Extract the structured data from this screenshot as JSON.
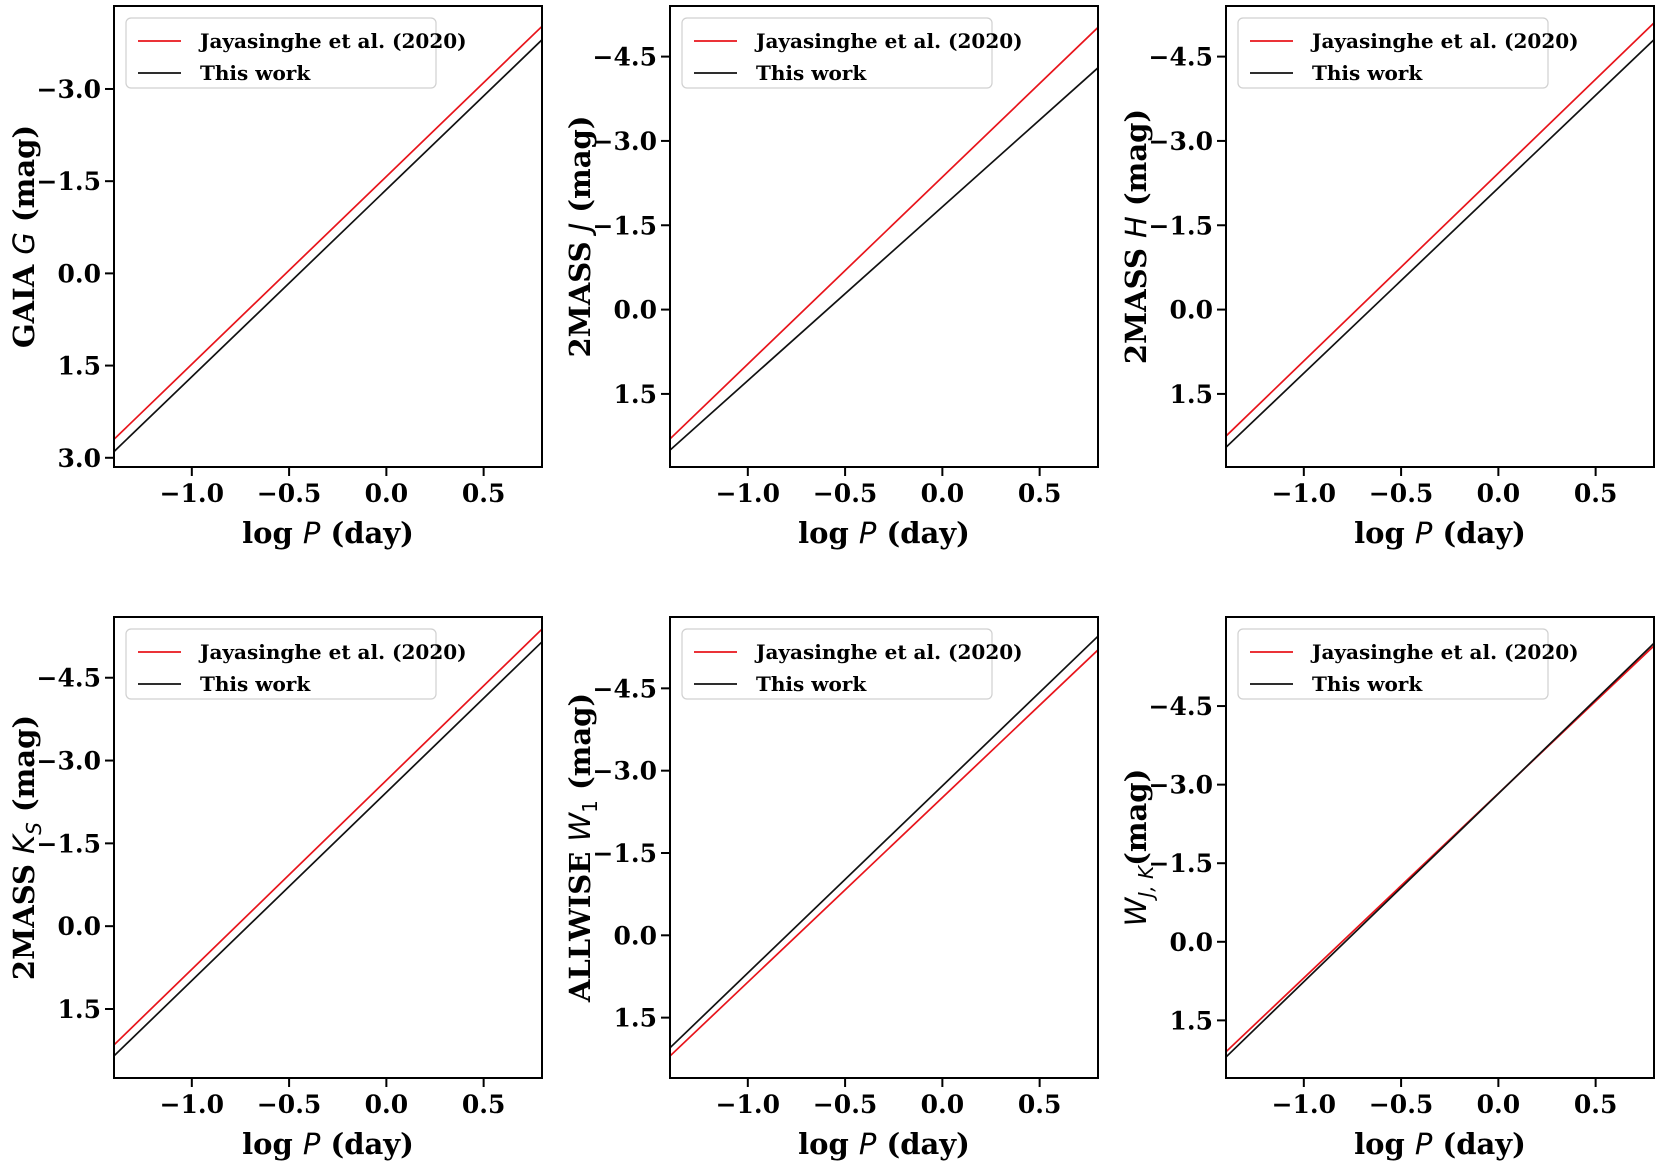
{
  "colors": {
    "jayasinghe": "#e8141b",
    "this_work": "#111111",
    "axes": "#000000"
  },
  "chart_data": [
    {
      "type": "line",
      "ylabel": "GAIA G (mag)",
      "ylabel_parts": [
        {
          "t": "GAIA "
        },
        {
          "t": "G",
          "i": true
        },
        {
          "t": " (mag)"
        }
      ],
      "xlabel": "log P (day)",
      "xlabel_parts": [
        {
          "t": "log "
        },
        {
          "t": "P",
          "i": true
        },
        {
          "t": " (day)"
        }
      ],
      "xlim": [
        -1.4,
        0.8
      ],
      "ylim": [
        3.15,
        -4.35
      ],
      "xticks": [
        -1.0,
        -0.5,
        0.0,
        0.5
      ],
      "xtick_labels": [
        "−1.0",
        "−0.5",
        "0.0",
        "0.5"
      ],
      "yticks": [
        -3.0,
        -1.5,
        0.0,
        1.5,
        3.0
      ],
      "ytick_labels": [
        "−3.0",
        "−1.5",
        "0.0",
        "1.5",
        "3.0"
      ],
      "legend": {
        "position": "upper-left",
        "entries": [
          "Jayasinghe et al. (2020)",
          "This work"
        ]
      },
      "series": [
        {
          "name": "Jayasinghe et al. (2020)",
          "color": "red",
          "x": [
            -1.4,
            0.8
          ],
          "values": [
            2.7,
            -4.02
          ]
        },
        {
          "name": "This work",
          "color": "black",
          "x": [
            -1.4,
            0.8
          ],
          "values": [
            2.9,
            -3.8
          ]
        }
      ]
    },
    {
      "type": "line",
      "ylabel": "2MASS J (mag)",
      "ylabel_parts": [
        {
          "t": "2MASS "
        },
        {
          "t": "J",
          "i": true
        },
        {
          "t": " (mag)"
        }
      ],
      "xlabel": "log P (day)",
      "xlabel_parts": [
        {
          "t": "log "
        },
        {
          "t": "P",
          "i": true
        },
        {
          "t": " (day)"
        }
      ],
      "xlim": [
        -1.4,
        0.8
      ],
      "ylim": [
        2.8,
        -5.4
      ],
      "xticks": [
        -1.0,
        -0.5,
        0.0,
        0.5
      ],
      "xtick_labels": [
        "−1.0",
        "−0.5",
        "0.0",
        "0.5"
      ],
      "yticks": [
        -4.5,
        -3.0,
        -1.5,
        0.0,
        1.5
      ],
      "ytick_labels": [
        "−4.5",
        "−3.0",
        "−1.5",
        "0.0",
        "1.5"
      ],
      "legend": {
        "position": "upper-left",
        "entries": [
          "Jayasinghe et al. (2020)",
          "This work"
        ]
      },
      "series": [
        {
          "name": "Jayasinghe et al. (2020)",
          "color": "red",
          "x": [
            -1.4,
            0.8
          ],
          "values": [
            2.3,
            -5.02
          ]
        },
        {
          "name": "This work",
          "color": "black",
          "x": [
            -1.4,
            0.8
          ],
          "values": [
            2.5,
            -4.3
          ]
        }
      ]
    },
    {
      "type": "line",
      "ylabel": "2MASS H (mag)",
      "ylabel_parts": [
        {
          "t": "2MASS "
        },
        {
          "t": "H",
          "i": true
        },
        {
          "t": " (mag)"
        }
      ],
      "xlabel": "log P (day)",
      "xlabel_parts": [
        {
          "t": "log "
        },
        {
          "t": "P",
          "i": true
        },
        {
          "t": " (day)"
        }
      ],
      "xlim": [
        -1.4,
        0.8
      ],
      "ylim": [
        2.8,
        -5.4
      ],
      "xticks": [
        -1.0,
        -0.5,
        0.0,
        0.5
      ],
      "xtick_labels": [
        "−1.0",
        "−0.5",
        "0.0",
        "0.5"
      ],
      "yticks": [
        -4.5,
        -3.0,
        -1.5,
        0.0,
        1.5
      ],
      "ytick_labels": [
        "−4.5",
        "−3.0",
        "−1.5",
        "0.0",
        "1.5"
      ],
      "legend": {
        "position": "upper-left",
        "entries": [
          "Jayasinghe et al. (2020)",
          "This work"
        ]
      },
      "series": [
        {
          "name": "Jayasinghe et al. (2020)",
          "color": "red",
          "x": [
            -1.4,
            0.8
          ],
          "values": [
            2.25,
            -5.1
          ]
        },
        {
          "name": "This work",
          "color": "black",
          "x": [
            -1.4,
            0.8
          ],
          "values": [
            2.45,
            -4.8
          ]
        }
      ]
    },
    {
      "type": "line",
      "ylabel": "2MASS Ks (mag)",
      "ylabel_parts": [
        {
          "t": "2MASS "
        },
        {
          "t": "K",
          "i": true
        },
        {
          "t": "S",
          "i": true,
          "sub": true
        },
        {
          "t": " (mag)"
        }
      ],
      "xlabel": "log P (day)",
      "xlabel_parts": [
        {
          "t": "log "
        },
        {
          "t": "P",
          "i": true
        },
        {
          "t": " (day)"
        }
      ],
      "xlim": [
        -1.4,
        0.8
      ],
      "ylim": [
        2.75,
        -5.6
      ],
      "xticks": [
        -1.0,
        -0.5,
        0.0,
        0.5
      ],
      "xtick_labels": [
        "−1.0",
        "−0.5",
        "0.0",
        "0.5"
      ],
      "yticks": [
        -4.5,
        -3.0,
        -1.5,
        0.0,
        1.5
      ],
      "ytick_labels": [
        "−4.5",
        "−3.0",
        "−1.5",
        "0.0",
        "1.5"
      ],
      "legend": {
        "position": "upper-left",
        "entries": [
          "Jayasinghe et al. (2020)",
          "This work"
        ]
      },
      "series": [
        {
          "name": "Jayasinghe et al. (2020)",
          "color": "red",
          "x": [
            -1.4,
            0.8
          ],
          "values": [
            2.15,
            -5.38
          ]
        },
        {
          "name": "This work",
          "color": "black",
          "x": [
            -1.4,
            0.8
          ],
          "values": [
            2.35,
            -5.15
          ]
        }
      ]
    },
    {
      "type": "line",
      "ylabel": "ALLWISE W1 (mag)",
      "ylabel_parts": [
        {
          "t": "ALLWISE "
        },
        {
          "t": "W",
          "i": true
        },
        {
          "t": "1",
          "sub": true,
          "sans": true
        },
        {
          "t": " (mag)"
        }
      ],
      "xlabel": "log P (day)",
      "xlabel_parts": [
        {
          "t": "log "
        },
        {
          "t": "P",
          "i": true
        },
        {
          "t": " (day)"
        }
      ],
      "xlim": [
        -1.4,
        0.8
      ],
      "ylim": [
        2.6,
        -5.8
      ],
      "xticks": [
        -1.0,
        -0.5,
        0.0,
        0.5
      ],
      "xtick_labels": [
        "−1.0",
        "−0.5",
        "0.0",
        "0.5"
      ],
      "yticks": [
        -4.5,
        -3.0,
        -1.5,
        0.0,
        1.5
      ],
      "ytick_labels": [
        "−4.5",
        "−3.0",
        "−1.5",
        "0.0",
        "1.5"
      ],
      "legend": {
        "position": "upper-left",
        "entries": [
          "Jayasinghe et al. (2020)",
          "This work"
        ]
      },
      "series": [
        {
          "name": "Jayasinghe et al. (2020)",
          "color": "red",
          "x": [
            -1.4,
            0.8
          ],
          "values": [
            2.2,
            -5.2
          ]
        },
        {
          "name": "This work",
          "color": "black",
          "x": [
            -1.4,
            0.8
          ],
          "values": [
            2.05,
            -5.45
          ]
        }
      ]
    },
    {
      "type": "line",
      "ylabel": "WJ,K (mag)",
      "ylabel_parts": [
        {
          "t": "W",
          "i": true,
          "sans": true
        },
        {
          "t": "J, K",
          "i": true,
          "sub": true,
          "sans": true
        },
        {
          "t": "(mag)"
        }
      ],
      "xlabel": "log P (day)",
      "xlabel_parts": [
        {
          "t": "log "
        },
        {
          "t": "P",
          "i": true
        },
        {
          "t": " (day)"
        }
      ],
      "xlim": [
        -1.4,
        0.8
      ],
      "ylim": [
        2.6,
        -6.2
      ],
      "xticks": [
        -1.0,
        -0.5,
        0.0,
        0.5
      ],
      "xtick_labels": [
        "−1.0",
        "−0.5",
        "0.0",
        "0.5"
      ],
      "yticks": [
        -4.5,
        -3.0,
        -1.5,
        0.0,
        1.5
      ],
      "ytick_labels": [
        "−4.5",
        "−3.0",
        "−1.5",
        "0.0",
        "1.5"
      ],
      "legend": {
        "position": "upper-left",
        "entries": [
          "Jayasinghe et al. (2020)",
          "This work"
        ]
      },
      "series": [
        {
          "name": "Jayasinghe et al. (2020)",
          "color": "red",
          "x": [
            -1.4,
            0.8
          ],
          "values": [
            2.1,
            -5.65
          ]
        },
        {
          "name": "This work",
          "color": "black",
          "x": [
            -1.4,
            0.8
          ],
          "values": [
            2.2,
            -5.7
          ]
        }
      ]
    }
  ]
}
